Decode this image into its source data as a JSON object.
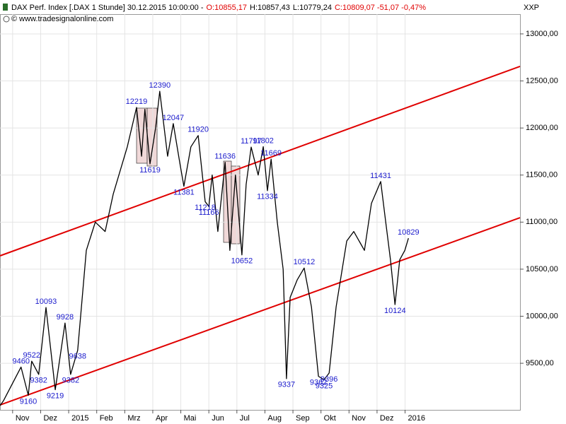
{
  "chart_data": {
    "type": "line",
    "title": "DAX Perf. Index [.DAX  1 Stunde] 30.12.2015 10:00:00 -",
    "quote": [
      {
        "text": "O:10855,17",
        "color": "#e00000"
      },
      {
        "text": "H:10857,43",
        "color": "#000000"
      },
      {
        "text": "L:10779,24",
        "color": "#000000"
      },
      {
        "text": "C:10809,07 -51,07 -0,47%",
        "color": "#e00000"
      }
    ],
    "source": "© www.tradesignalonline.com",
    "y_axis_label": "XXP",
    "x": [
      -0.45,
      -0.33,
      0.3,
      0.56,
      0.68,
      0.93,
      1.19,
      1.52,
      1.87,
      2.07,
      2.32,
      2.63,
      2.95,
      3.3,
      3.59,
      4.09,
      4.42,
      4.6,
      4.72,
      4.9,
      5.1,
      5.25,
      5.53,
      5.73,
      5.98,
      6.11,
      6.36,
      6.62,
      6.87,
      7.0,
      7.12,
      7.32,
      7.58,
      7.75,
      7.95,
      8.18,
      8.33,
      8.51,
      8.76,
      8.94,
      9.09,
      9.22,
      9.44,
      9.65,
      9.77,
      9.9,
      10.15,
      10.4,
      10.66,
      10.91,
      11.11,
      11.29,
      11.54,
      11.92,
      12.17,
      12.55,
      12.8,
      13.13,
      13.31,
      13.48,
      13.64,
      13.81,
      13.99,
      14.12
    ],
    "series": [
      {
        "color": "#000000",
        "values": [
          9050,
          9100,
          9460,
          9160,
          9522,
          9382,
          10093,
          9219,
          9928,
          9382,
          9638,
          10700,
          11000,
          10900,
          11300,
          11800,
          12219,
          11700,
          12200,
          11619,
          12000,
          12390,
          11700,
          12047,
          11600,
          11381,
          11800,
          11920,
          11218,
          11166,
          11500,
          10900,
          11636,
          10700,
          11500,
          10652,
          11400,
          11797,
          11500,
          11802,
          11334,
          11669,
          11000,
          10500,
          9337,
          10200,
          10385,
          10512,
          10100,
          9362,
          9325,
          9396,
          10100,
          10800,
          10900,
          10700,
          11200,
          11431,
          11000,
          10600,
          10124,
          10600,
          10700,
          10829
        ]
      }
    ],
    "trendlines": [
      {
        "color": "#e00000",
        "x": [
          -0.45,
          18.1
        ],
        "values": [
          10642,
          12655
        ]
      },
      {
        "color": "#e00000",
        "x": [
          -0.45,
          18.1
        ],
        "values": [
          9057,
          11047
        ]
      }
    ],
    "annotations": [
      {
        "x": 0.3,
        "value": 9460,
        "position": "above"
      },
      {
        "x": 0.56,
        "value": 9160,
        "position": "below"
      },
      {
        "x": 0.68,
        "value": 9522,
        "position": "above"
      },
      {
        "x": 0.93,
        "value": 9382,
        "position": "below"
      },
      {
        "x": 1.19,
        "value": 10093,
        "position": "above"
      },
      {
        "x": 1.52,
        "value": 9219,
        "position": "below"
      },
      {
        "x": 1.87,
        "value": 9928,
        "position": "above"
      },
      {
        "x": 2.07,
        "value": 9382,
        "position": "below"
      },
      {
        "x": 2.32,
        "value": 9638,
        "position": "below"
      },
      {
        "x": 4.42,
        "value": 12219,
        "position": "above"
      },
      {
        "x": 4.9,
        "value": 11619,
        "position": "below"
      },
      {
        "x": 5.25,
        "value": 12390,
        "position": "above"
      },
      {
        "x": 5.73,
        "value": 12047,
        "position": "above"
      },
      {
        "x": 6.11,
        "value": 11381,
        "position": "below"
      },
      {
        "x": 6.62,
        "value": 11920,
        "position": "above"
      },
      {
        "x": 6.87,
        "value": 11218,
        "position": "below"
      },
      {
        "x": 7.0,
        "value": 11166,
        "position": "below"
      },
      {
        "x": 7.58,
        "value": 11636,
        "position": "above"
      },
      {
        "x": 8.18,
        "value": 10652,
        "position": "below"
      },
      {
        "x": 8.51,
        "value": 11797,
        "position": "above"
      },
      {
        "x": 8.94,
        "value": 11802,
        "position": "above"
      },
      {
        "x": 9.09,
        "value": 11334,
        "position": "below"
      },
      {
        "x": 9.22,
        "value": 11669,
        "position": "above"
      },
      {
        "x": 9.77,
        "value": 9337,
        "position": "below"
      },
      {
        "x": 10.4,
        "value": 10512,
        "position": "above"
      },
      {
        "x": 10.91,
        "value": 9362,
        "position": "below"
      },
      {
        "x": 11.11,
        "value": 9325,
        "position": "below"
      },
      {
        "x": 11.29,
        "value": 9396,
        "position": "below"
      },
      {
        "x": 13.13,
        "value": 11431,
        "position": "above"
      },
      {
        "x": 13.64,
        "value": 10124,
        "position": "below"
      },
      {
        "x": 14.12,
        "value": 10829,
        "position": "above"
      }
    ],
    "xlim": [
      -0.45,
      18.1
    ],
    "xticks": [
      {
        "value": 0,
        "label": "Nov"
      },
      {
        "value": 1,
        "label": "Dez"
      },
      {
        "value": 2,
        "label": "2015"
      },
      {
        "value": 3,
        "label": "Feb"
      },
      {
        "value": 4,
        "label": "Mrz"
      },
      {
        "value": 5,
        "label": "Apr"
      },
      {
        "value": 6,
        "label": "Mai"
      },
      {
        "value": 7,
        "label": "Jun"
      },
      {
        "value": 8,
        "label": "Jul"
      },
      {
        "value": 9,
        "label": "Aug"
      },
      {
        "value": 10,
        "label": "Sep"
      },
      {
        "value": 11,
        "label": "Okt"
      },
      {
        "value": 12,
        "label": "Nov"
      },
      {
        "value": 13,
        "label": "Dez"
      },
      {
        "value": 14,
        "label": "2016"
      }
    ],
    "ylim": [
      9005,
      13210
    ],
    "yticks": [
      {
        "value": 9500,
        "label": "9500,00"
      },
      {
        "value": 10000,
        "label": "10000,00"
      },
      {
        "value": 10500,
        "label": "10500,00"
      },
      {
        "value": 11000,
        "label": "11000,00"
      },
      {
        "value": 11500,
        "label": "11500,00"
      },
      {
        "value": 12000,
        "label": "12000,00"
      },
      {
        "value": 12500,
        "label": "12500,00"
      },
      {
        "value": 13000,
        "label": "13000,00"
      }
    ],
    "grid": true
  }
}
